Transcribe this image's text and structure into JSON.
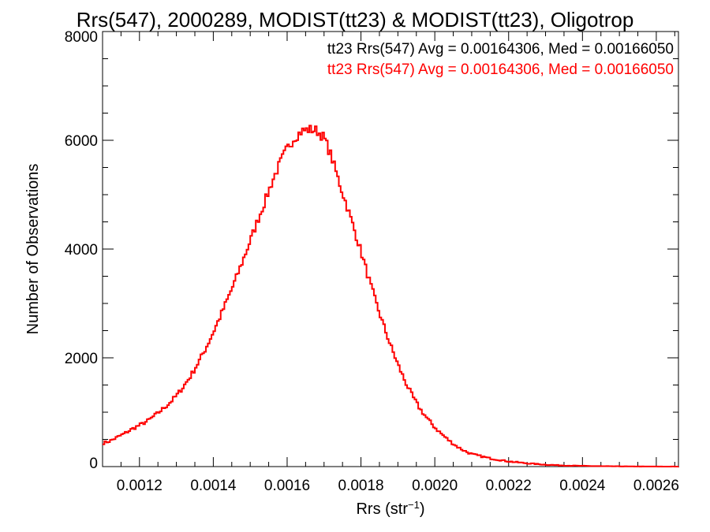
{
  "chart_data": {
    "type": "line",
    "style": "histogram-step",
    "title": "Rrs(547), 2000289, MODIST(tt23) & MODIST(tt23), Oligotrop",
    "xlabel_prefix": "Rrs (str",
    "xlabel_sup": "−1",
    "xlabel_suffix": ")",
    "ylabel": "Number of Observations",
    "xlim": [
      0.0011,
      0.00266
    ],
    "ylim": [
      0,
      8000
    ],
    "x_ticks": [
      {
        "value": 0.0012,
        "label": "0.0012"
      },
      {
        "value": 0.0014,
        "label": "0.0014"
      },
      {
        "value": 0.0016,
        "label": "0.0016"
      },
      {
        "value": 0.0018,
        "label": "0.0018"
      },
      {
        "value": 0.002,
        "label": "0.0020"
      },
      {
        "value": 0.0022,
        "label": "0.0022"
      },
      {
        "value": 0.0024,
        "label": "0.0024"
      },
      {
        "value": 0.0026,
        "label": "0.0026"
      }
    ],
    "y_ticks": [
      {
        "value": 0,
        "label": "0"
      },
      {
        "value": 2000,
        "label": "2000"
      },
      {
        "value": 4000,
        "label": "4000"
      },
      {
        "value": 6000,
        "label": "6000"
      },
      {
        "value": 8000,
        "label": "8000"
      }
    ],
    "x_minor_step": 5e-05,
    "y_minor_step": 500,
    "grid": false,
    "legend_position": "top-right",
    "legend": [
      {
        "text": "tt23 Rrs(547) Avg = 0.00164306, Med = 0.00166050",
        "color": "#000000"
      },
      {
        "text": "tt23 Rrs(547) Avg = 0.00164306, Med = 0.00166050",
        "color": "#ff0000"
      }
    ],
    "series": [
      {
        "name": "tt23 Rrs(547)",
        "color": "#ff0000",
        "x": [
          0.0011,
          0.00112,
          0.00114,
          0.00116,
          0.00118,
          0.0012,
          0.00122,
          0.00124,
          0.00126,
          0.00128,
          0.0013,
          0.00132,
          0.00134,
          0.00136,
          0.00138,
          0.0014,
          0.00142,
          0.00144,
          0.00146,
          0.00148,
          0.0015,
          0.00152,
          0.00154,
          0.00156,
          0.00158,
          0.0016,
          0.00162,
          0.00164,
          0.00166,
          0.00168,
          0.0017,
          0.00172,
          0.00174,
          0.00176,
          0.00178,
          0.0018,
          0.00182,
          0.00184,
          0.00186,
          0.00188,
          0.0019,
          0.00192,
          0.00194,
          0.00196,
          0.00198,
          0.002,
          0.00202,
          0.00204,
          0.00206,
          0.00208,
          0.0021,
          0.00215,
          0.0022,
          0.00225,
          0.0023,
          0.00235,
          0.0024,
          0.00245,
          0.0025,
          0.00255,
          0.0026,
          0.00266
        ],
        "values": [
          430,
          470,
          540,
          610,
          690,
          760,
          830,
          930,
          1040,
          1160,
          1300,
          1480,
          1680,
          1920,
          2180,
          2470,
          2780,
          3100,
          3430,
          3790,
          4150,
          4520,
          4880,
          5250,
          5570,
          5850,
          6050,
          6170,
          6200,
          6180,
          6050,
          5700,
          5250,
          4830,
          4400,
          3960,
          3480,
          3030,
          2620,
          2230,
          1880,
          1560,
          1290,
          1060,
          880,
          720,
          590,
          470,
          370,
          290,
          230,
          150,
          95,
          60,
          35,
          20,
          12,
          7,
          4,
          2,
          1,
          0
        ]
      }
    ]
  }
}
